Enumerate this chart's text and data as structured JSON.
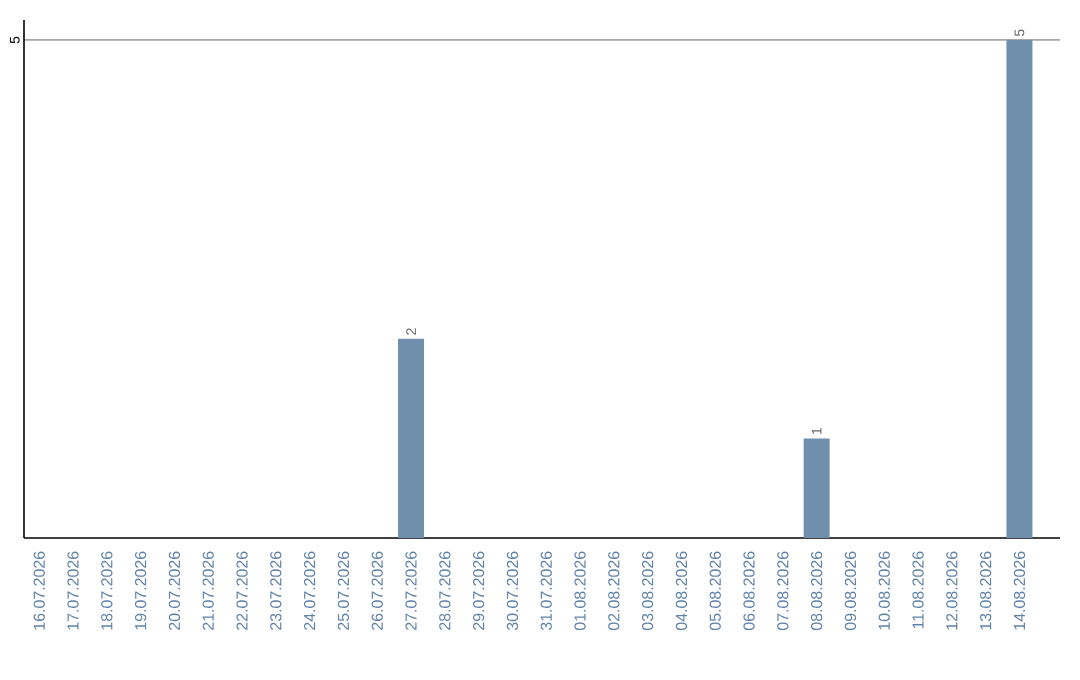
{
  "chart_data": {
    "type": "bar",
    "categories": [
      "16.07.2026",
      "17.07.2026",
      "18.07.2026",
      "19.07.2026",
      "20.07.2026",
      "21.07.2026",
      "22.07.2026",
      "23.07.2026",
      "24.07.2026",
      "25.07.2026",
      "26.07.2026",
      "27.07.2026",
      "28.07.2026",
      "29.07.2026",
      "30.07.2026",
      "31.07.2026",
      "01.08.2026",
      "02.08.2026",
      "03.08.2026",
      "04.08.2026",
      "05.08.2026",
      "06.08.2026",
      "07.08.2026",
      "08.08.2026",
      "09.08.2026",
      "10.08.2026",
      "11.08.2026",
      "12.08.2026",
      "13.08.2026",
      "14.08.2026"
    ],
    "values": [
      0,
      0,
      0,
      0,
      0,
      0,
      0,
      0,
      0,
      0,
      0,
      2,
      0,
      0,
      0,
      0,
      0,
      0,
      0,
      0,
      0,
      0,
      0,
      1,
      0,
      0,
      0,
      0,
      0,
      5
    ],
    "value_labels": [
      null,
      null,
      null,
      null,
      null,
      null,
      null,
      null,
      null,
      null,
      null,
      "2",
      null,
      null,
      null,
      null,
      null,
      null,
      null,
      null,
      null,
      null,
      null,
      "1",
      null,
      null,
      null,
      null,
      null,
      "5"
    ],
    "color": "#6f8fad",
    "ylim": [
      0,
      5.2
    ],
    "yticks": [
      5
    ],
    "grid": "y"
  }
}
